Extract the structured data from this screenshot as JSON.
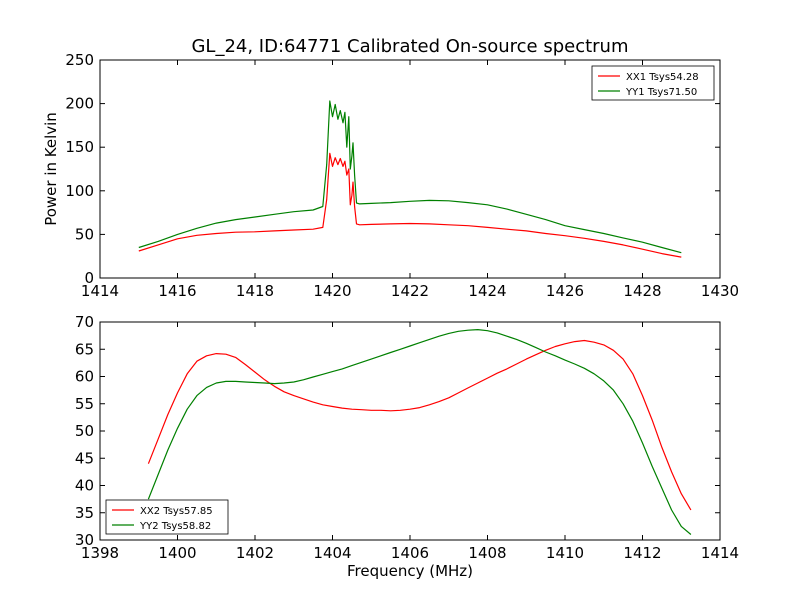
{
  "figure": {
    "title": "GL_24, ID:64771 Calibrated On-source spectrum",
    "xlabel": "Frequency (MHz)"
  },
  "chart_data": [
    {
      "type": "line",
      "title": "GL_24, ID:64771 Calibrated On-source spectrum",
      "xlabel": "",
      "ylabel": "Power in Kelvin",
      "xlim": [
        1414,
        1430
      ],
      "ylim": [
        0,
        250
      ],
      "xticks": [
        1414,
        1416,
        1418,
        1420,
        1422,
        1424,
        1426,
        1428,
        1430
      ],
      "yticks": [
        0,
        50,
        100,
        150,
        200,
        250
      ],
      "grid": false,
      "legend_position": "top-right",
      "series": [
        {
          "name": "XX1 Tsys54.28",
          "color": "#ff0000",
          "x": [
            1415.0,
            1415.5,
            1416.0,
            1416.5,
            1417.0,
            1417.5,
            1418.0,
            1418.5,
            1419.0,
            1419.5,
            1419.75,
            1419.85,
            1419.93,
            1420.0,
            1420.07,
            1420.14,
            1420.2,
            1420.27,
            1420.32,
            1420.37,
            1420.42,
            1420.46,
            1420.5,
            1420.53,
            1420.57,
            1420.62,
            1420.7,
            1421.0,
            1421.5,
            1422.0,
            1422.5,
            1423.0,
            1423.5,
            1424.0,
            1424.5,
            1425.0,
            1425.5,
            1426.0,
            1426.5,
            1427.0,
            1427.5,
            1428.0,
            1428.5,
            1429.0
          ],
          "y": [
            31,
            38,
            45,
            49,
            51,
            52.5,
            53,
            54,
            55,
            56,
            58,
            90,
            143,
            128,
            138,
            130,
            137,
            128,
            134,
            118,
            125,
            84,
            95,
            110,
            82,
            62,
            61,
            61.5,
            62,
            62.5,
            62,
            61,
            60,
            58,
            56,
            54,
            51,
            48.5,
            45.5,
            42,
            38,
            33,
            28,
            24
          ]
        },
        {
          "name": "YY1 Tsys71.50",
          "color": "#008000",
          "x": [
            1415.0,
            1415.5,
            1416.0,
            1416.5,
            1417.0,
            1417.5,
            1418.0,
            1418.5,
            1419.0,
            1419.5,
            1419.75,
            1419.85,
            1419.93,
            1420.0,
            1420.07,
            1420.14,
            1420.2,
            1420.27,
            1420.32,
            1420.37,
            1420.42,
            1420.46,
            1420.5,
            1420.53,
            1420.57,
            1420.62,
            1420.7,
            1421.0,
            1421.5,
            1422.0,
            1422.5,
            1423.0,
            1423.5,
            1424.0,
            1424.5,
            1425.0,
            1425.5,
            1426.0,
            1426.5,
            1427.0,
            1427.5,
            1428.0,
            1428.5,
            1429.0
          ],
          "y": [
            35,
            42,
            50,
            57,
            63,
            67,
            70,
            73,
            76,
            78,
            82,
            130,
            203,
            185,
            199,
            182,
            192,
            178,
            190,
            150,
            185,
            125,
            140,
            155,
            118,
            86,
            85,
            85.5,
            86.5,
            88,
            89,
            88.5,
            86.5,
            84,
            79,
            73,
            67,
            60,
            55.5,
            51,
            46,
            41,
            35,
            29
          ]
        }
      ]
    },
    {
      "type": "line",
      "title": "",
      "xlabel": "Frequency (MHz)",
      "ylabel": "",
      "xlim": [
        1398,
        1414
      ],
      "ylim": [
        30,
        70
      ],
      "xticks": [
        1398,
        1400,
        1402,
        1404,
        1406,
        1408,
        1410,
        1412,
        1414
      ],
      "yticks": [
        30,
        35,
        40,
        45,
        50,
        55,
        60,
        65,
        70
      ],
      "grid": false,
      "legend_position": "bottom-left",
      "series": [
        {
          "name": "XX2 Tsys57.85",
          "color": "#ff0000",
          "x": [
            1399.25,
            1399.5,
            1399.75,
            1400.0,
            1400.25,
            1400.5,
            1400.75,
            1401.0,
            1401.25,
            1401.5,
            1401.75,
            1402.0,
            1402.25,
            1402.5,
            1402.75,
            1403.0,
            1403.25,
            1403.5,
            1403.75,
            1404.0,
            1404.25,
            1404.5,
            1404.75,
            1405.0,
            1405.25,
            1405.5,
            1405.75,
            1406.0,
            1406.25,
            1406.5,
            1406.75,
            1407.0,
            1407.25,
            1407.5,
            1407.75,
            1408.0,
            1408.25,
            1408.5,
            1408.75,
            1409.0,
            1409.25,
            1409.5,
            1409.75,
            1410.0,
            1410.25,
            1410.5,
            1410.75,
            1411.0,
            1411.25,
            1411.5,
            1411.75,
            1412.0,
            1412.25,
            1412.5,
            1412.75,
            1413.0,
            1413.25
          ],
          "y": [
            44,
            48.5,
            53,
            57,
            60.5,
            62.8,
            63.8,
            64.2,
            64.1,
            63.5,
            62.2,
            60.8,
            59.4,
            58.2,
            57.2,
            56.5,
            55.9,
            55.3,
            54.8,
            54.5,
            54.2,
            54.0,
            53.9,
            53.8,
            53.8,
            53.7,
            53.8,
            54.0,
            54.3,
            54.8,
            55.4,
            56.1,
            57.0,
            57.9,
            58.8,
            59.7,
            60.6,
            61.4,
            62.3,
            63.2,
            64.0,
            64.8,
            65.5,
            66.0,
            66.4,
            66.6,
            66.3,
            65.8,
            64.8,
            63.2,
            60.5,
            56.5,
            52.0,
            47.0,
            42.5,
            38.5,
            35.5
          ]
        },
        {
          "name": "YY2 Tsys58.82",
          "color": "#008000",
          "x": [
            1399.25,
            1399.5,
            1399.75,
            1400.0,
            1400.25,
            1400.5,
            1400.75,
            1401.0,
            1401.25,
            1401.5,
            1401.75,
            1402.0,
            1402.25,
            1402.5,
            1402.75,
            1403.0,
            1403.25,
            1403.5,
            1403.75,
            1404.0,
            1404.25,
            1404.5,
            1404.75,
            1405.0,
            1405.25,
            1405.5,
            1405.75,
            1406.0,
            1406.25,
            1406.5,
            1406.75,
            1407.0,
            1407.25,
            1407.5,
            1407.75,
            1408.0,
            1408.25,
            1408.5,
            1408.75,
            1409.0,
            1409.25,
            1409.5,
            1409.75,
            1410.0,
            1410.25,
            1410.5,
            1410.75,
            1411.0,
            1411.25,
            1411.5,
            1411.75,
            1412.0,
            1412.25,
            1412.5,
            1412.75,
            1413.0,
            1413.25
          ],
          "y": [
            37.5,
            42,
            46.5,
            50.5,
            54,
            56.5,
            58.0,
            58.8,
            59.1,
            59.1,
            59.0,
            58.9,
            58.8,
            58.7,
            58.8,
            59.0,
            59.4,
            59.9,
            60.4,
            60.9,
            61.4,
            62.0,
            62.6,
            63.2,
            63.8,
            64.4,
            65.0,
            65.6,
            66.2,
            66.8,
            67.4,
            67.9,
            68.3,
            68.5,
            68.6,
            68.4,
            68.0,
            67.4,
            66.8,
            66.1,
            65.3,
            64.5,
            63.8,
            63.0,
            62.3,
            61.5,
            60.5,
            59.2,
            57.5,
            55.0,
            51.8,
            47.8,
            43.5,
            39.5,
            35.5,
            32.5,
            31.0
          ]
        }
      ]
    }
  ]
}
